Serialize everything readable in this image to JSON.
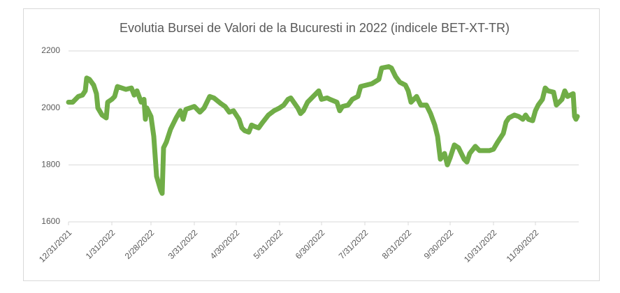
{
  "chart_data": {
    "type": "line",
    "title": "Evolutia Bursei de Valori de la Bucuresti in 2022 (indicele BET-XT-TR)",
    "x": [
      "2021-12-31",
      "2022-01-03",
      "2022-01-05",
      "2022-01-07",
      "2022-01-10",
      "2022-01-12",
      "2022-01-13",
      "2022-01-15",
      "2022-01-18",
      "2022-01-20",
      "2022-01-21",
      "2022-01-24",
      "2022-01-27",
      "2022-01-28",
      "2022-01-31",
      "2022-02-02",
      "2022-02-04",
      "2022-02-07",
      "2022-02-10",
      "2022-02-14",
      "2022-02-16",
      "2022-02-18",
      "2022-02-21",
      "2022-02-23",
      "2022-02-24",
      "2022-02-25",
      "2022-02-28",
      "2022-03-02",
      "2022-03-04",
      "2022-03-07",
      "2022-03-08",
      "2022-03-09",
      "2022-03-11",
      "2022-03-14",
      "2022-03-16",
      "2022-03-18",
      "2022-03-21",
      "2022-03-23",
      "2022-03-25",
      "2022-03-28",
      "2022-03-31",
      "2022-04-04",
      "2022-04-07",
      "2022-04-11",
      "2022-04-14",
      "2022-04-19",
      "2022-04-22",
      "2022-04-25",
      "2022-04-28",
      "2022-05-02",
      "2022-05-04",
      "2022-05-06",
      "2022-05-09",
      "2022-05-11",
      "2022-05-13",
      "2022-05-16",
      "2022-05-19",
      "2022-05-23",
      "2022-05-27",
      "2022-05-31",
      "2022-06-03",
      "2022-06-06",
      "2022-06-08",
      "2022-06-13",
      "2022-06-15",
      "2022-06-17",
      "2022-06-20",
      "2022-06-24",
      "2022-06-28",
      "2022-06-30",
      "2022-07-04",
      "2022-07-06",
      "2022-07-11",
      "2022-07-13",
      "2022-07-15",
      "2022-07-19",
      "2022-07-22",
      "2022-07-26",
      "2022-07-28",
      "2022-08-01",
      "2022-08-05",
      "2022-08-10",
      "2022-08-12",
      "2022-08-17",
      "2022-08-19",
      "2022-08-22",
      "2022-08-25",
      "2022-08-29",
      "2022-08-31",
      "2022-09-02",
      "2022-09-06",
      "2022-09-09",
      "2022-09-13",
      "2022-09-16",
      "2022-09-19",
      "2022-09-21",
      "2022-09-23",
      "2022-09-26",
      "2022-09-28",
      "2022-09-30",
      "2022-10-03",
      "2022-10-06",
      "2022-10-10",
      "2022-10-12",
      "2022-10-14",
      "2022-10-18",
      "2022-10-21",
      "2022-10-25",
      "2022-10-28",
      "2022-10-31",
      "2022-11-03",
      "2022-11-07",
      "2022-11-09",
      "2022-11-11",
      "2022-11-15",
      "2022-11-18",
      "2022-11-21",
      "2022-11-23",
      "2022-11-25",
      "2022-11-28",
      "2022-11-30",
      "2022-12-02",
      "2022-12-05",
      "2022-12-07",
      "2022-12-09",
      "2022-12-13",
      "2022-12-15",
      "2022-12-19",
      "2022-12-21",
      "2022-12-23",
      "2022-12-27",
      "2022-12-28",
      "2022-12-29",
      "2022-12-30"
    ],
    "series": [
      {
        "color": "#70ad47",
        "values": [
          2020,
          2020,
          2030,
          2040,
          2045,
          2060,
          2105,
          2100,
          2080,
          2050,
          2000,
          1975,
          1965,
          2020,
          2030,
          2040,
          2075,
          2070,
          2065,
          2070,
          2045,
          2060,
          2020,
          2030,
          1960,
          2000,
          1970,
          1900,
          1760,
          1710,
          1700,
          1860,
          1880,
          1925,
          1945,
          1965,
          1990,
          1960,
          1995,
          2000,
          2005,
          1985,
          2000,
          2040,
          2035,
          2015,
          2005,
          1985,
          1990,
          1960,
          1930,
          1920,
          1915,
          1940,
          1935,
          1930,
          1950,
          1975,
          1990,
          2000,
          2010,
          2030,
          2035,
          2000,
          1980,
          1990,
          2020,
          2040,
          2060,
          2030,
          2035,
          2030,
          2020,
          1990,
          2005,
          2010,
          2030,
          2040,
          2075,
          2080,
          2085,
          2100,
          2140,
          2145,
          2140,
          2110,
          2090,
          2080,
          2060,
          2020,
          2040,
          2010,
          2010,
          1980,
          1940,
          1900,
          1820,
          1840,
          1800,
          1825,
          1870,
          1860,
          1820,
          1810,
          1840,
          1865,
          1850,
          1850,
          1850,
          1855,
          1880,
          1910,
          1950,
          1965,
          1975,
          1970,
          1960,
          1975,
          1960,
          1955,
          1990,
          2010,
          2030,
          2070,
          2060,
          2055,
          2010,
          2030,
          2060,
          2040,
          2050,
          1970,
          1960,
          1970
        ]
      }
    ],
    "xlim": [
      "2021-12-31",
      "2022-12-31"
    ],
    "xticks": [
      {
        "value": "2021-12-31",
        "label": "12/31/2021"
      },
      {
        "value": "2022-01-31",
        "label": "1/31/2022"
      },
      {
        "value": "2022-02-28",
        "label": "2/28/2022"
      },
      {
        "value": "2022-03-31",
        "label": "3/31/2022"
      },
      {
        "value": "2022-04-30",
        "label": "4/30/2022"
      },
      {
        "value": "2022-05-31",
        "label": "5/31/2022"
      },
      {
        "value": "2022-06-30",
        "label": "6/30/2022"
      },
      {
        "value": "2022-07-31",
        "label": "7/31/2022"
      },
      {
        "value": "2022-08-31",
        "label": "8/31/2022"
      },
      {
        "value": "2022-09-30",
        "label": "9/30/2022"
      },
      {
        "value": "2022-10-31",
        "label": "10/31/2022"
      },
      {
        "value": "2022-11-30",
        "label": "11/30/2022"
      }
    ],
    "ylim": [
      1600,
      2200
    ],
    "yticks": [
      1600,
      1800,
      2000,
      2200
    ],
    "grid": true
  }
}
